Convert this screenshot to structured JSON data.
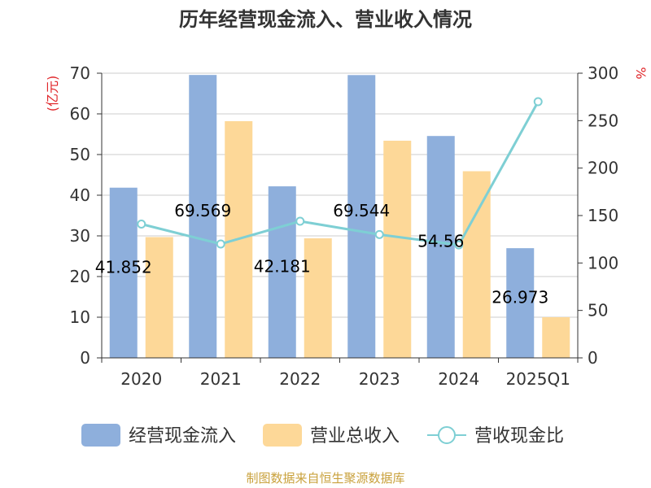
{
  "chart_data": {
    "type": "bar",
    "title": "历年经营现金流入、营业收入情况",
    "categories": [
      "2020",
      "2021",
      "2022",
      "2023",
      "2024",
      "2025Q1"
    ],
    "left_axis": {
      "unit_label": "(亿元)",
      "ylim": [
        0,
        70
      ],
      "ticks": [
        "0",
        "10",
        "20",
        "30",
        "40",
        "50",
        "60",
        "70"
      ]
    },
    "right_axis": {
      "unit_label": "%",
      "ylim": [
        0,
        300
      ],
      "ticks": [
        "0",
        "50",
        "100",
        "150",
        "200",
        "250",
        "300"
      ]
    },
    "grid": true,
    "series": [
      {
        "name": "经营现金流入",
        "kind": "bar",
        "axis": "left",
        "color": "#8eafdc",
        "values": [
          41.852,
          69.569,
          42.181,
          69.544,
          54.56,
          26.973
        ],
        "labels": [
          "41.852",
          "69.569",
          "42.181",
          "69.544",
          "54.56",
          "26.973"
        ]
      },
      {
        "name": "营业总收入",
        "kind": "bar",
        "axis": "left",
        "color": "#fdd898",
        "values": [
          29.7,
          58.2,
          29.4,
          53.4,
          45.9,
          10.0
        ]
      },
      {
        "name": "营收现金比",
        "kind": "line",
        "axis": "right",
        "color": "#7ecfd4",
        "values": [
          141,
          120,
          144,
          130,
          119,
          270
        ]
      }
    ],
    "legend_position": "bottom"
  },
  "footer": {
    "source": "制图数据来自恒生聚源数据库"
  }
}
